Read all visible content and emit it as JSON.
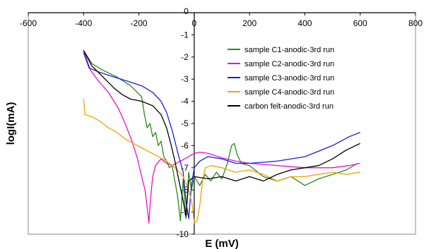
{
  "chart_data": {
    "type": "line",
    "title": "",
    "xlabel": "E (mV)",
    "ylabel": "logI(mA)",
    "xlim": [
      -600,
      800
    ],
    "ylim": [
      -10,
      0
    ],
    "x_ticks": [
      -600,
      -400,
      -200,
      0,
      200,
      400,
      600,
      800
    ],
    "y_ticks": [
      -1,
      -2,
      -3,
      -4,
      -5,
      -6,
      -7,
      -8,
      -9,
      -10
    ],
    "y_tick_zero": "0",
    "grid": false,
    "legend_position": "right",
    "series": [
      {
        "name": "sample C1-anodic-3rd run",
        "color": "#2a8a1c",
        "points": [
          [
            -400,
            -1.7
          ],
          [
            -370,
            -2.3
          ],
          [
            -330,
            -2.6
          ],
          [
            -280,
            -2.9
          ],
          [
            -230,
            -3.3
          ],
          [
            -190,
            -3.8
          ],
          [
            -180,
            -4.6
          ],
          [
            -170,
            -5.2
          ],
          [
            -160,
            -5.0
          ],
          [
            -150,
            -5.6
          ],
          [
            -140,
            -5.4
          ],
          [
            -130,
            -6.0
          ],
          [
            -120,
            -5.8
          ],
          [
            -110,
            -6.5
          ],
          [
            -100,
            -6.7
          ],
          [
            -90,
            -7.0
          ],
          [
            -80,
            -6.9
          ],
          [
            -70,
            -7.6
          ],
          [
            -60,
            -8.3
          ],
          [
            -50,
            -9.4
          ],
          [
            -40,
            -7.5
          ],
          [
            -30,
            -9.3
          ],
          [
            -20,
            -7.2
          ],
          [
            -10,
            -8.0
          ],
          [
            0,
            -7.4
          ],
          [
            20,
            -7.8
          ],
          [
            40,
            -7.3
          ],
          [
            60,
            -7.6
          ],
          [
            80,
            -7.2
          ],
          [
            100,
            -7.5
          ],
          [
            120,
            -6.8
          ],
          [
            135,
            -6.0
          ],
          [
            145,
            -5.9
          ],
          [
            155,
            -6.4
          ],
          [
            170,
            -6.8
          ],
          [
            200,
            -6.9
          ],
          [
            250,
            -7.4
          ],
          [
            300,
            -7.6
          ],
          [
            350,
            -7.4
          ],
          [
            400,
            -7.8
          ],
          [
            450,
            -7.5
          ],
          [
            500,
            -7.3
          ],
          [
            550,
            -7.1
          ],
          [
            590,
            -6.8
          ]
        ]
      },
      {
        "name": "sample C2-anodic-3rd run",
        "color": "#ea10d0",
        "points": [
          [
            -400,
            -1.7
          ],
          [
            -375,
            -2.6
          ],
          [
            -345,
            -3.1
          ],
          [
            -310,
            -3.6
          ],
          [
            -275,
            -4.3
          ],
          [
            -250,
            -5.0
          ],
          [
            -225,
            -5.8
          ],
          [
            -205,
            -6.6
          ],
          [
            -190,
            -7.4
          ],
          [
            -178,
            -8.0
          ],
          [
            -170,
            -8.8
          ],
          [
            -164,
            -9.5
          ],
          [
            -158,
            -8.4
          ],
          [
            -150,
            -7.4
          ],
          [
            -140,
            -6.9
          ],
          [
            -120,
            -6.6
          ],
          [
            -100,
            -6.8
          ],
          [
            -80,
            -6.9
          ],
          [
            -50,
            -6.7
          ],
          [
            -20,
            -6.5
          ],
          [
            0,
            -6.35
          ],
          [
            20,
            -6.3
          ],
          [
            50,
            -6.35
          ],
          [
            100,
            -6.55
          ],
          [
            150,
            -6.7
          ],
          [
            200,
            -6.8
          ],
          [
            300,
            -6.9
          ],
          [
            400,
            -7.0
          ],
          [
            500,
            -7.0
          ],
          [
            560,
            -6.9
          ],
          [
            600,
            -6.8
          ]
        ]
      },
      {
        "name": "sample C3-anodic-3rd run",
        "color": "#1d1de0",
        "points": [
          [
            -400,
            -1.8
          ],
          [
            -380,
            -2.5
          ],
          [
            -340,
            -2.7
          ],
          [
            -290,
            -2.9
          ],
          [
            -240,
            -3.1
          ],
          [
            -190,
            -3.3
          ],
          [
            -150,
            -3.6
          ],
          [
            -120,
            -4.0
          ],
          [
            -100,
            -4.5
          ],
          [
            -80,
            -5.3
          ],
          [
            -60,
            -6.3
          ],
          [
            -40,
            -7.2
          ],
          [
            -30,
            -8.5
          ],
          [
            -20,
            -9.3
          ],
          [
            -10,
            -7.8
          ],
          [
            0,
            -7.0
          ],
          [
            20,
            -6.7
          ],
          [
            50,
            -6.5
          ],
          [
            100,
            -6.6
          ],
          [
            150,
            -6.8
          ],
          [
            200,
            -6.8
          ],
          [
            300,
            -6.7
          ],
          [
            400,
            -6.5
          ],
          [
            500,
            -6.0
          ],
          [
            560,
            -5.6
          ],
          [
            600,
            -5.4
          ]
        ]
      },
      {
        "name": "sample C4-anodic-3rd run",
        "color": "#f5a100",
        "points": [
          [
            -400,
            -3.9
          ],
          [
            -395,
            -4.6
          ],
          [
            -370,
            -4.7
          ],
          [
            -340,
            -4.9
          ],
          [
            -310,
            -5.2
          ],
          [
            -280,
            -5.4
          ],
          [
            -250,
            -5.7
          ],
          [
            -220,
            -5.9
          ],
          [
            -190,
            -6.1
          ],
          [
            -160,
            -6.3
          ],
          [
            -130,
            -6.5
          ],
          [
            -100,
            -6.7
          ],
          [
            -80,
            -6.9
          ],
          [
            -60,
            -7.1
          ],
          [
            -40,
            -7.4
          ],
          [
            -20,
            -8.0
          ],
          [
            -8,
            -8.6
          ],
          [
            0,
            -9.5
          ],
          [
            10,
            -9.4
          ],
          [
            20,
            -8.7
          ],
          [
            30,
            -7.6
          ],
          [
            40,
            -7.0
          ],
          [
            60,
            -6.9
          ],
          [
            100,
            -7.0
          ],
          [
            150,
            -7.2
          ],
          [
            200,
            -7.1
          ],
          [
            250,
            -7.3
          ],
          [
            300,
            -7.6
          ],
          [
            350,
            -7.4
          ],
          [
            400,
            -7.4
          ],
          [
            450,
            -7.3
          ],
          [
            500,
            -7.2
          ],
          [
            550,
            -7.3
          ],
          [
            600,
            -7.2
          ]
        ]
      },
      {
        "name": "carbon felt-anodic-3rd run",
        "color": "#000000",
        "points": [
          [
            -400,
            -1.7
          ],
          [
            -370,
            -2.4
          ],
          [
            -330,
            -2.9
          ],
          [
            -290,
            -3.4
          ],
          [
            -260,
            -3.7
          ],
          [
            -230,
            -3.9
          ],
          [
            -190,
            -4.0
          ],
          [
            -150,
            -4.2
          ],
          [
            -120,
            -4.6
          ],
          [
            -100,
            -5.2
          ],
          [
            -85,
            -5.9
          ],
          [
            -70,
            -6.7
          ],
          [
            -55,
            -7.6
          ],
          [
            -40,
            -8.5
          ],
          [
            -30,
            -9.2
          ],
          [
            -20,
            -7.6
          ],
          [
            0,
            -7.4
          ],
          [
            50,
            -7.5
          ],
          [
            100,
            -7.4
          ],
          [
            150,
            -7.6
          ],
          [
            200,
            -7.4
          ],
          [
            250,
            -7.6
          ],
          [
            300,
            -7.3
          ],
          [
            350,
            -7.1
          ],
          [
            400,
            -7.0
          ],
          [
            450,
            -6.9
          ],
          [
            500,
            -6.6
          ],
          [
            550,
            -6.2
          ],
          [
            600,
            -5.9
          ]
        ]
      }
    ]
  }
}
